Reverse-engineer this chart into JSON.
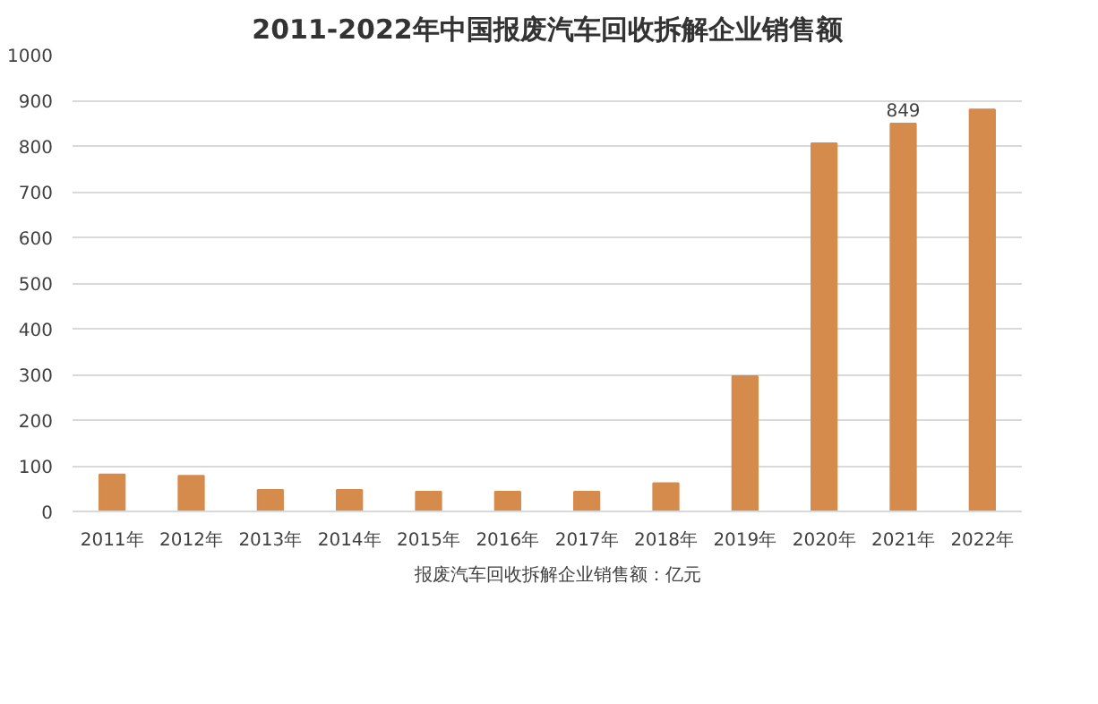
{
  "chart_data": {
    "type": "bar",
    "title": "2011-2022年中国报废汽车回收拆解企业销售额",
    "categories": [
      "2011年",
      "2012年",
      "2013年",
      "2014年",
      "2015年",
      "2016年",
      "2017年",
      "2018年",
      "2019年",
      "2020年",
      "2021年",
      "2022年"
    ],
    "series": [
      {
        "name": "报废汽车回收拆解企业销售额：亿元",
        "color": "#d58b4c",
        "values": [
          81,
          78,
          47,
          47,
          43,
          43,
          43,
          62,
          296,
          806,
          849,
          880
        ],
        "value_labels": [
          null,
          null,
          null,
          null,
          null,
          null,
          null,
          null,
          null,
          null,
          "849",
          null
        ]
      }
    ],
    "ylim": [
      0,
      1000
    ],
    "yticks": [
      0,
      100,
      200,
      300,
      400,
      500,
      600,
      700,
      800,
      900,
      1000
    ],
    "grid": "y",
    "legend": "bottom"
  }
}
